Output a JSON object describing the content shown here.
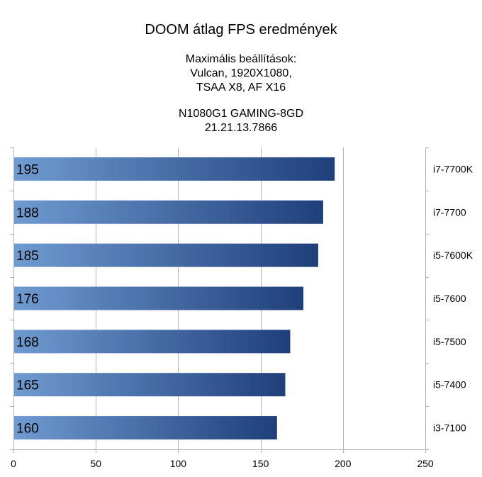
{
  "chart_data": {
    "type": "bar",
    "orientation": "horizontal",
    "title": "DOOM átlag FPS eredmények",
    "subtitle_lines": [
      "Maximális beállítások:",
      "Vulcan, 1920X1080,",
      "TSAA X8, AF X16",
      "",
      "N1080G1 GAMING-8GD",
      "21.21.13.7866"
    ],
    "categories": [
      "i7-7700K",
      "i7-7700",
      "i5-7600K",
      "i5-7600",
      "i5-7500",
      "i5-7400",
      "i3-7100"
    ],
    "values": [
      195,
      188,
      185,
      176,
      168,
      165,
      160
    ],
    "value_labels": [
      "195",
      "188",
      "185",
      "176",
      "168",
      "165",
      "160"
    ],
    "xlim": [
      0,
      250
    ],
    "xticks": [
      0,
      50,
      100,
      150,
      200,
      250
    ],
    "xtick_labels": [
      "0",
      "50",
      "100",
      "150",
      "200",
      "250"
    ],
    "xlabel": "",
    "ylabel": "",
    "category_labels_position": "right",
    "grid": true,
    "legend": "none",
    "bar_gradient": [
      "#6f9bd1",
      "#1f3f7a"
    ]
  }
}
